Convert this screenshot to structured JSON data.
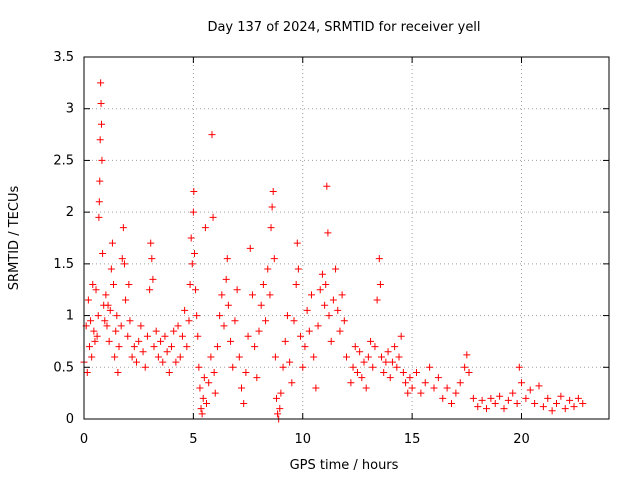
{
  "chart_data": {
    "type": "scatter",
    "title": "Day 137 of 2024, SRMTID for receiver yell",
    "xlabel": "GPS time / hours",
    "ylabel": "SRMTID / TECUs",
    "xlim": [
      0,
      24
    ],
    "ylim": [
      0,
      3.5
    ],
    "xticks": [
      0,
      5,
      10,
      15,
      20
    ],
    "yticks": [
      0,
      0.5,
      1,
      1.5,
      2,
      2.5,
      3,
      3.5
    ],
    "xtick_labels": [
      "0",
      "5",
      "10",
      "15",
      "20"
    ],
    "ytick_labels": [
      "0",
      "0.5",
      "1",
      "1.5",
      "2",
      "2.5",
      "3",
      "3.5"
    ],
    "grid": true,
    "marker": "+",
    "series": [
      {
        "name": "SRMTID",
        "color": "#ff0000",
        "points": [
          [
            0.0,
            0.55
          ],
          [
            0.1,
            0.9
          ],
          [
            0.15,
            0.45
          ],
          [
            0.2,
            1.15
          ],
          [
            0.25,
            0.7
          ],
          [
            0.3,
            0.95
          ],
          [
            0.35,
            0.6
          ],
          [
            0.4,
            1.3
          ],
          [
            0.45,
            0.85
          ],
          [
            0.5,
            0.75
          ],
          [
            0.55,
            1.25
          ],
          [
            0.6,
            0.8
          ],
          [
            0.65,
            1.0
          ],
          [
            0.68,
            1.95
          ],
          [
            0.7,
            2.1
          ],
          [
            0.72,
            2.3
          ],
          [
            0.74,
            2.7
          ],
          [
            0.76,
            3.25
          ],
          [
            0.78,
            3.05
          ],
          [
            0.8,
            2.85
          ],
          [
            0.82,
            2.5
          ],
          [
            0.85,
            1.6
          ],
          [
            0.9,
            1.1
          ],
          [
            0.95,
            0.95
          ],
          [
            1.0,
            1.2
          ],
          [
            1.05,
            0.9
          ],
          [
            1.1,
            1.1
          ],
          [
            1.15,
            0.75
          ],
          [
            1.2,
            1.05
          ],
          [
            1.25,
            1.45
          ],
          [
            1.3,
            1.7
          ],
          [
            1.35,
            1.3
          ],
          [
            1.4,
            0.6
          ],
          [
            1.45,
            0.85
          ],
          [
            1.5,
            1.0
          ],
          [
            1.55,
            0.45
          ],
          [
            1.6,
            0.7
          ],
          [
            1.7,
            0.9
          ],
          [
            1.75,
            1.55
          ],
          [
            1.8,
            1.85
          ],
          [
            1.85,
            1.5
          ],
          [
            1.9,
            1.15
          ],
          [
            2.0,
            0.8
          ],
          [
            2.05,
            1.3
          ],
          [
            2.1,
            0.95
          ],
          [
            2.2,
            0.6
          ],
          [
            2.3,
            0.7
          ],
          [
            2.4,
            0.55
          ],
          [
            2.5,
            0.75
          ],
          [
            2.6,
            0.9
          ],
          [
            2.7,
            0.65
          ],
          [
            2.8,
            0.5
          ],
          [
            2.9,
            0.8
          ],
          [
            3.0,
            1.25
          ],
          [
            3.05,
            1.7
          ],
          [
            3.1,
            1.55
          ],
          [
            3.15,
            1.35
          ],
          [
            3.2,
            0.7
          ],
          [
            3.3,
            0.85
          ],
          [
            3.4,
            0.6
          ],
          [
            3.5,
            0.75
          ],
          [
            3.6,
            0.55
          ],
          [
            3.7,
            0.8
          ],
          [
            3.8,
            0.65
          ],
          [
            3.9,
            0.45
          ],
          [
            4.0,
            0.7
          ],
          [
            4.1,
            0.85
          ],
          [
            4.2,
            0.55
          ],
          [
            4.3,
            0.9
          ],
          [
            4.4,
            0.6
          ],
          [
            4.5,
            0.8
          ],
          [
            4.6,
            1.05
          ],
          [
            4.7,
            0.7
          ],
          [
            4.8,
            0.95
          ],
          [
            4.85,
            1.3
          ],
          [
            4.9,
            1.75
          ],
          [
            4.95,
            1.5
          ],
          [
            5.0,
            2.0
          ],
          [
            5.02,
            2.2
          ],
          [
            5.05,
            1.6
          ],
          [
            5.1,
            1.25
          ],
          [
            5.15,
            1.0
          ],
          [
            5.2,
            0.8
          ],
          [
            5.25,
            0.5
          ],
          [
            5.3,
            0.3
          ],
          [
            5.35,
            0.1
          ],
          [
            5.4,
            0.05
          ],
          [
            5.45,
            0.2
          ],
          [
            5.5,
            0.4
          ],
          [
            5.55,
            1.85
          ],
          [
            5.6,
            0.15
          ],
          [
            5.7,
            0.35
          ],
          [
            5.8,
            0.6
          ],
          [
            5.85,
            2.75
          ],
          [
            5.9,
            1.95
          ],
          [
            5.95,
            0.45
          ],
          [
            6.0,
            0.25
          ],
          [
            6.1,
            0.7
          ],
          [
            6.2,
            1.0
          ],
          [
            6.3,
            1.2
          ],
          [
            6.4,
            0.9
          ],
          [
            6.5,
            1.35
          ],
          [
            6.55,
            1.55
          ],
          [
            6.6,
            1.1
          ],
          [
            6.7,
            0.75
          ],
          [
            6.8,
            0.5
          ],
          [
            6.9,
            0.95
          ],
          [
            7.0,
            1.25
          ],
          [
            7.1,
            0.6
          ],
          [
            7.2,
            0.3
          ],
          [
            7.3,
            0.15
          ],
          [
            7.4,
            0.45
          ],
          [
            7.5,
            0.8
          ],
          [
            7.6,
            1.65
          ],
          [
            7.7,
            1.2
          ],
          [
            7.8,
            0.7
          ],
          [
            7.9,
            0.4
          ],
          [
            8.0,
            0.85
          ],
          [
            8.1,
            1.1
          ],
          [
            8.2,
            1.3
          ],
          [
            8.3,
            0.95
          ],
          [
            8.4,
            1.45
          ],
          [
            8.5,
            1.2
          ],
          [
            8.55,
            1.85
          ],
          [
            8.6,
            2.05
          ],
          [
            8.65,
            2.2
          ],
          [
            8.7,
            1.55
          ],
          [
            8.75,
            0.6
          ],
          [
            8.8,
            0.2
          ],
          [
            8.85,
            0.05
          ],
          [
            8.9,
            0.0
          ],
          [
            8.95,
            0.1
          ],
          [
            9.0,
            0.25
          ],
          [
            9.1,
            0.5
          ],
          [
            9.2,
            0.75
          ],
          [
            9.3,
            1.0
          ],
          [
            9.4,
            0.55
          ],
          [
            9.5,
            0.35
          ],
          [
            9.6,
            0.95
          ],
          [
            9.7,
            1.3
          ],
          [
            9.75,
            1.7
          ],
          [
            9.8,
            1.45
          ],
          [
            9.9,
            0.8
          ],
          [
            10.0,
            0.5
          ],
          [
            10.1,
            0.7
          ],
          [
            10.2,
            1.05
          ],
          [
            10.3,
            0.85
          ],
          [
            10.4,
            1.2
          ],
          [
            10.5,
            0.6
          ],
          [
            10.6,
            0.3
          ],
          [
            10.7,
            0.9
          ],
          [
            10.8,
            1.25
          ],
          [
            10.9,
            1.4
          ],
          [
            11.0,
            1.1
          ],
          [
            11.05,
            1.3
          ],
          [
            11.1,
            2.25
          ],
          [
            11.15,
            1.8
          ],
          [
            11.2,
            1.0
          ],
          [
            11.3,
            0.75
          ],
          [
            11.4,
            1.15
          ],
          [
            11.5,
            1.45
          ],
          [
            11.6,
            1.05
          ],
          [
            11.7,
            0.85
          ],
          [
            11.8,
            1.2
          ],
          [
            11.9,
            0.95
          ],
          [
            12.0,
            0.6
          ],
          [
            12.2,
            0.35
          ],
          [
            12.3,
            0.5
          ],
          [
            12.4,
            0.7
          ],
          [
            12.5,
            0.45
          ],
          [
            12.6,
            0.65
          ],
          [
            12.7,
            0.4
          ],
          [
            12.8,
            0.55
          ],
          [
            12.9,
            0.3
          ],
          [
            13.0,
            0.6
          ],
          [
            13.1,
            0.75
          ],
          [
            13.2,
            0.5
          ],
          [
            13.3,
            0.7
          ],
          [
            13.4,
            1.15
          ],
          [
            13.5,
            1.55
          ],
          [
            13.55,
            1.3
          ],
          [
            13.6,
            0.6
          ],
          [
            13.7,
            0.45
          ],
          [
            13.8,
            0.55
          ],
          [
            13.9,
            0.65
          ],
          [
            14.0,
            0.4
          ],
          [
            14.1,
            0.55
          ],
          [
            14.2,
            0.7
          ],
          [
            14.3,
            0.5
          ],
          [
            14.4,
            0.6
          ],
          [
            14.5,
            0.8
          ],
          [
            14.6,
            0.45
          ],
          [
            14.7,
            0.35
          ],
          [
            14.8,
            0.25
          ],
          [
            14.9,
            0.4
          ],
          [
            15.0,
            0.3
          ],
          [
            15.2,
            0.45
          ],
          [
            15.4,
            0.25
          ],
          [
            15.6,
            0.35
          ],
          [
            15.8,
            0.5
          ],
          [
            16.0,
            0.3
          ],
          [
            16.2,
            0.4
          ],
          [
            16.4,
            0.2
          ],
          [
            16.6,
            0.3
          ],
          [
            16.8,
            0.15
          ],
          [
            17.0,
            0.25
          ],
          [
            17.2,
            0.35
          ],
          [
            17.4,
            0.5
          ],
          [
            17.5,
            0.62
          ],
          [
            17.6,
            0.45
          ],
          [
            17.8,
            0.2
          ],
          [
            18.0,
            0.12
          ],
          [
            18.2,
            0.18
          ],
          [
            18.4,
            0.1
          ],
          [
            18.6,
            0.2
          ],
          [
            18.8,
            0.15
          ],
          [
            19.0,
            0.22
          ],
          [
            19.2,
            0.1
          ],
          [
            19.4,
            0.18
          ],
          [
            19.6,
            0.25
          ],
          [
            19.8,
            0.15
          ],
          [
            19.9,
            0.5
          ],
          [
            20.0,
            0.35
          ],
          [
            20.2,
            0.2
          ],
          [
            20.4,
            0.28
          ],
          [
            20.6,
            0.15
          ],
          [
            20.8,
            0.32
          ],
          [
            21.0,
            0.12
          ],
          [
            21.2,
            0.2
          ],
          [
            21.4,
            0.08
          ],
          [
            21.6,
            0.15
          ],
          [
            21.8,
            0.22
          ],
          [
            22.0,
            0.1
          ],
          [
            22.2,
            0.18
          ],
          [
            22.4,
            0.12
          ],
          [
            22.6,
            0.2
          ],
          [
            22.8,
            0.15
          ]
        ]
      }
    ]
  }
}
